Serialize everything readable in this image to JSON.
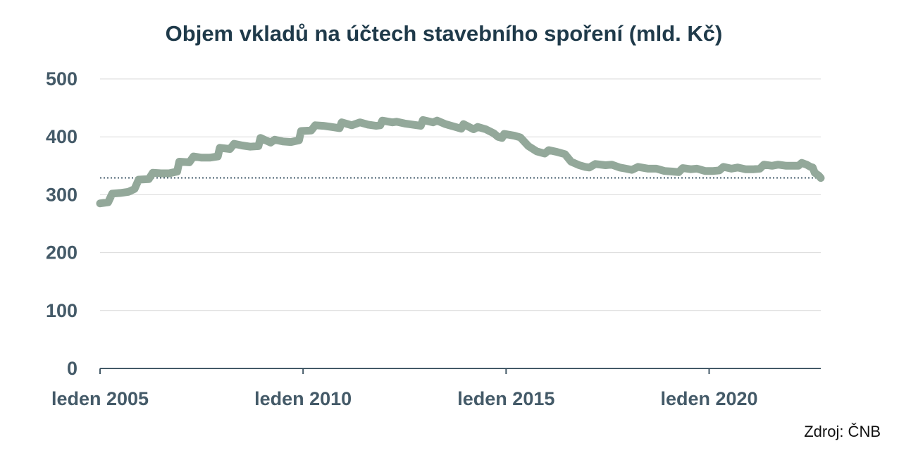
{
  "chart_data": {
    "type": "line",
    "title": "Objem vkladů na účtech stavebního spoření (mld. Kč)",
    "source": "Zdroj: ČNB",
    "ylim": [
      0,
      500
    ],
    "yticks": [
      0,
      100,
      200,
      300,
      400,
      500
    ],
    "xticks": [
      {
        "x": 2005.0,
        "label": "leden 2005"
      },
      {
        "x": 2010.0,
        "label": "leden 2010"
      },
      {
        "x": 2015.0,
        "label": "leden 2015"
      },
      {
        "x": 2020.0,
        "label": "leden 2020"
      }
    ],
    "xlim": [
      2005.0,
      2022.75
    ],
    "grid": true,
    "reference_line": {
      "y": 329,
      "style": "dotted"
    },
    "series": [
      {
        "color": "#93a89a",
        "points": [
          [
            2005.0,
            285
          ],
          [
            2005.2,
            287
          ],
          [
            2005.3,
            302
          ],
          [
            2005.5,
            303
          ],
          [
            2005.7,
            305
          ],
          [
            2005.85,
            310
          ],
          [
            2005.95,
            326
          ],
          [
            2006.2,
            327
          ],
          [
            2006.3,
            338
          ],
          [
            2006.5,
            337
          ],
          [
            2006.7,
            337
          ],
          [
            2006.9,
            340
          ],
          [
            2006.95,
            357
          ],
          [
            2007.2,
            356
          ],
          [
            2007.3,
            366
          ],
          [
            2007.5,
            364
          ],
          [
            2007.7,
            364
          ],
          [
            2007.9,
            366
          ],
          [
            2007.95,
            381
          ],
          [
            2008.2,
            379
          ],
          [
            2008.3,
            388
          ],
          [
            2008.5,
            385
          ],
          [
            2008.7,
            383
          ],
          [
            2008.9,
            384
          ],
          [
            2008.95,
            398
          ],
          [
            2009.2,
            390
          ],
          [
            2009.3,
            395
          ],
          [
            2009.5,
            392
          ],
          [
            2009.7,
            391
          ],
          [
            2009.9,
            394
          ],
          [
            2009.95,
            410
          ],
          [
            2010.2,
            411
          ],
          [
            2010.3,
            420
          ],
          [
            2010.5,
            419
          ],
          [
            2010.7,
            417
          ],
          [
            2010.9,
            415
          ],
          [
            2010.95,
            425
          ],
          [
            2011.2,
            420
          ],
          [
            2011.4,
            425
          ],
          [
            2011.6,
            421
          ],
          [
            2011.8,
            419
          ],
          [
            2011.9,
            420
          ],
          [
            2011.95,
            428
          ],
          [
            2012.2,
            425
          ],
          [
            2012.3,
            426
          ],
          [
            2012.5,
            423
          ],
          [
            2012.7,
            421
          ],
          [
            2012.9,
            419
          ],
          [
            2012.95,
            429
          ],
          [
            2013.2,
            425
          ],
          [
            2013.3,
            428
          ],
          [
            2013.5,
            422
          ],
          [
            2013.7,
            418
          ],
          [
            2013.9,
            414
          ],
          [
            2013.95,
            422
          ],
          [
            2014.2,
            413
          ],
          [
            2014.3,
            417
          ],
          [
            2014.5,
            413
          ],
          [
            2014.7,
            406
          ],
          [
            2014.8,
            400
          ],
          [
            2014.9,
            398
          ],
          [
            2014.95,
            405
          ],
          [
            2015.2,
            402
          ],
          [
            2015.35,
            399
          ],
          [
            2015.55,
            384
          ],
          [
            2015.75,
            375
          ],
          [
            2015.95,
            371
          ],
          [
            2016.05,
            377
          ],
          [
            2016.25,
            374
          ],
          [
            2016.45,
            370
          ],
          [
            2016.6,
            357
          ],
          [
            2016.8,
            351
          ],
          [
            2016.95,
            348
          ],
          [
            2017.05,
            347
          ],
          [
            2017.2,
            353
          ],
          [
            2017.45,
            351
          ],
          [
            2017.6,
            352
          ],
          [
            2017.8,
            347
          ],
          [
            2017.95,
            345
          ],
          [
            2018.1,
            343
          ],
          [
            2018.25,
            348
          ],
          [
            2018.5,
            345
          ],
          [
            2018.7,
            345
          ],
          [
            2018.9,
            341
          ],
          [
            2019.1,
            340
          ],
          [
            2019.25,
            339
          ],
          [
            2019.35,
            346
          ],
          [
            2019.55,
            344
          ],
          [
            2019.7,
            345
          ],
          [
            2019.9,
            341
          ],
          [
            2020.1,
            341
          ],
          [
            2020.25,
            342
          ],
          [
            2020.35,
            348
          ],
          [
            2020.55,
            345
          ],
          [
            2020.7,
            347
          ],
          [
            2020.9,
            344
          ],
          [
            2021.1,
            344
          ],
          [
            2021.25,
            345
          ],
          [
            2021.35,
            352
          ],
          [
            2021.55,
            350
          ],
          [
            2021.7,
            352
          ],
          [
            2021.9,
            350
          ],
          [
            2022.1,
            350
          ],
          [
            2022.2,
            350
          ],
          [
            2022.28,
            355
          ],
          [
            2022.4,
            352
          ],
          [
            2022.5,
            348
          ],
          [
            2022.55,
            347
          ],
          [
            2022.6,
            338
          ],
          [
            2022.7,
            333
          ],
          [
            2022.75,
            329
          ]
        ]
      }
    ]
  }
}
